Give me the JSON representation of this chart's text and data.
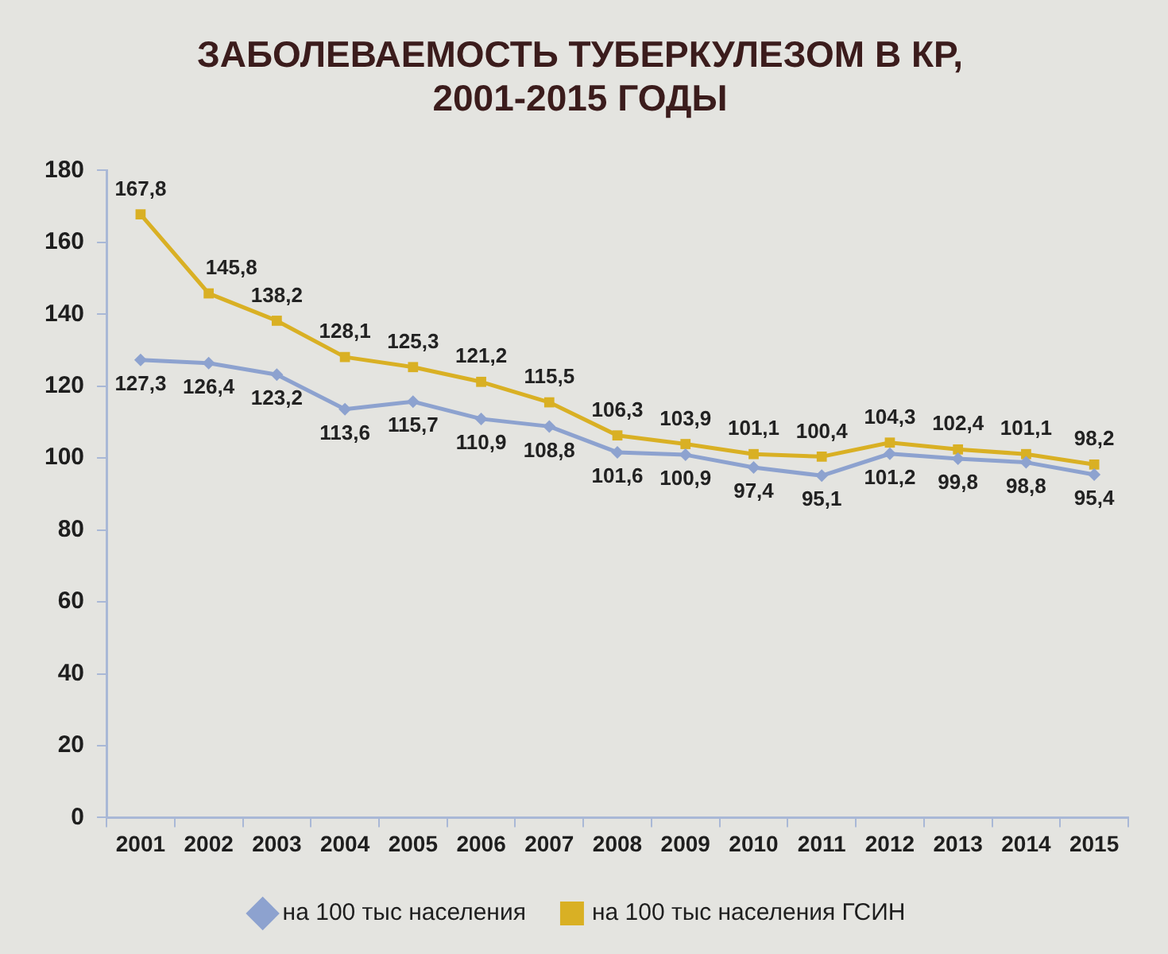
{
  "chart_data": {
    "type": "line",
    "title": "ЗАБОЛЕВАЕМОСТЬ ТУБЕРКУЛЕЗОМ В КР,\n2001-2015 ГОДЫ",
    "categories": [
      "2001",
      "2002",
      "2003",
      "2004",
      "2005",
      "2006",
      "2007",
      "2008",
      "2009",
      "2010",
      "2011",
      "2012",
      "2013",
      "2014",
      "2015"
    ],
    "series": [
      {
        "name": "на 100 тыс населения",
        "color": "#8da2cf",
        "marker": "diamond",
        "values": [
          127.3,
          126.4,
          123.2,
          113.6,
          115.7,
          110.9,
          108.8,
          101.6,
          100.9,
          97.4,
          95.1,
          101.2,
          99.8,
          98.8,
          95.4
        ],
        "value_labels": [
          "127,3",
          "126,4",
          "123,2",
          "113,6",
          "115,7",
          "110,9",
          "108,8",
          "101,6",
          "100,9",
          "97,4",
          "95,1",
          "101,2",
          "99,8",
          "98,8",
          "95,4"
        ]
      },
      {
        "name": "на 100 тыс населения ГСИН",
        "color": "#d9b024",
        "marker": "square",
        "values": [
          167.8,
          145.8,
          138.2,
          128.1,
          125.3,
          121.2,
          115.5,
          106.3,
          103.9,
          101.1,
          100.4,
          104.3,
          102.4,
          101.1,
          98.2
        ],
        "value_labels": [
          "167,8",
          "145,8",
          "138,2",
          "128,1",
          "125,3",
          "121,2",
          "115,5",
          "106,3",
          "103,9",
          "101,1",
          "100,4",
          "104,3",
          "102,4",
          "101,1",
          "98,2"
        ]
      }
    ],
    "ylim": [
      0,
      180
    ],
    "yticks": [
      0,
      20,
      40,
      60,
      80,
      100,
      120,
      140,
      160,
      180
    ],
    "grid": false,
    "legend": "bottom"
  }
}
